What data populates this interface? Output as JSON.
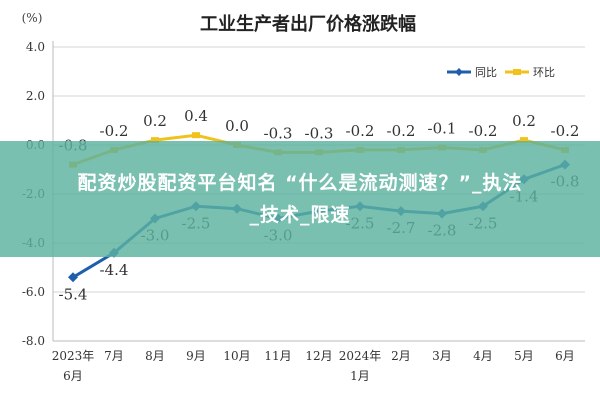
{
  "chart_data": {
    "type": "line",
    "title": "工业生产者出厂价格涨跌幅",
    "ylabel": "(%)",
    "xlabel": "",
    "ylim": [
      -8.0,
      4.0
    ],
    "yticks": [
      "4.0",
      "2.0",
      "0.0",
      "-2.0",
      "-4.0",
      "-6.0",
      "-8.0"
    ],
    "grid": true,
    "legend_position": "top-right",
    "categories": [
      [
        "2023年",
        "6月"
      ],
      [
        "7月"
      ],
      [
        "8月"
      ],
      [
        "9月"
      ],
      [
        "10月"
      ],
      [
        "11月"
      ],
      [
        "12月"
      ],
      [
        "2024年",
        "1月"
      ],
      [
        "2月"
      ],
      [
        "3月"
      ],
      [
        "4月"
      ],
      [
        "5月"
      ],
      [
        "6月"
      ]
    ],
    "series": [
      {
        "name": "同比",
        "color": "#1f5faa",
        "values": [
          -5.4,
          -4.4,
          -3.0,
          -2.5,
          -2.6,
          -3.0,
          -2.7,
          -2.5,
          -2.7,
          -2.8,
          -2.5,
          -1.4,
          -0.8
        ],
        "labels": [
          "-5.4",
          "-4.4",
          "-3.0",
          "-2.5",
          "",
          "-3.0",
          "",
          "-2.5",
          "-2.7",
          "-2.8",
          "-2.5",
          "-1.4",
          "-0.8"
        ]
      },
      {
        "name": "环比",
        "color": "#f2c21c",
        "values": [
          -0.8,
          -0.2,
          0.2,
          0.4,
          0.0,
          -0.3,
          -0.3,
          -0.2,
          -0.2,
          -0.1,
          -0.2,
          0.2,
          -0.2
        ],
        "labels": [
          "-0.8",
          "-0.2",
          "0.2",
          "0.4",
          "0.0",
          "-0.3",
          "-0.3",
          "-0.2",
          "-0.2",
          "-0.1",
          "-0.2",
          "0.2",
          "-0.2"
        ]
      }
    ]
  },
  "overlay": {
    "line1": "配资炒股配资平台知名 “什么是流动测速？”_执法",
    "line2": "_技术_限速"
  }
}
